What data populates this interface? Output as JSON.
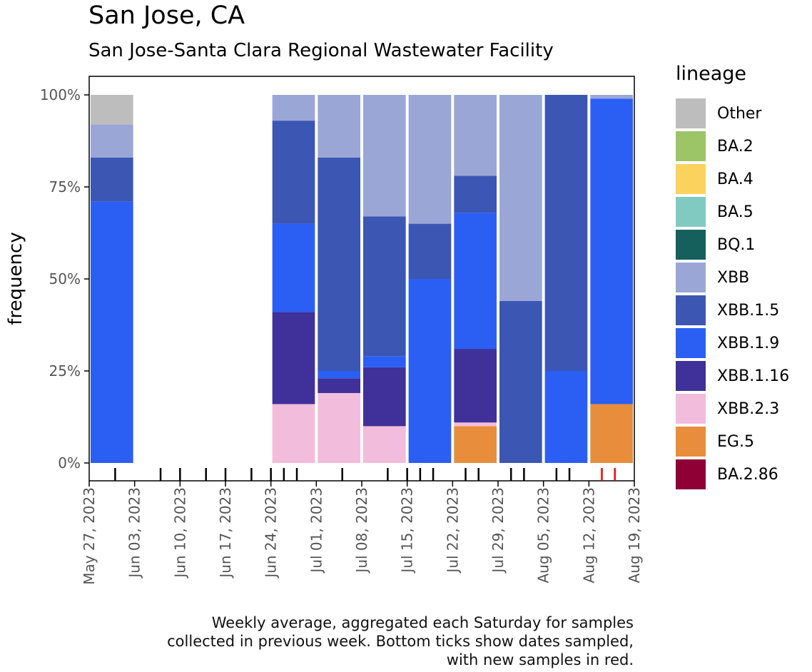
{
  "title": "San Jose, CA",
  "subtitle": "San Jose-Santa Clara Regional Wastewater Facility",
  "caption": [
    "Weekly average, aggregated each Saturday for samples",
    "collected in previous week. Bottom ticks show dates sampled,",
    "with new samples in red."
  ],
  "legend_title": "lineage",
  "lineages": [
    {
      "name": "Other",
      "color": "#bdbdbd"
    },
    {
      "name": "BA.2",
      "color": "#9cc567"
    },
    {
      "name": "BA.4",
      "color": "#fcd25f"
    },
    {
      "name": "BA.5",
      "color": "#80cac1"
    },
    {
      "name": "BQ.1",
      "color": "#155f5c"
    },
    {
      "name": "XBB",
      "color": "#9aa7d6"
    },
    {
      "name": "XBB.1.5",
      "color": "#3c56b4"
    },
    {
      "name": "XBB.1.9",
      "color": "#2b5ff4"
    },
    {
      "name": "XBB.1.16",
      "color": "#40309a"
    },
    {
      "name": "XBB.2.3",
      "color": "#f2bcdc"
    },
    {
      "name": "EG.5",
      "color": "#e88d3b"
    },
    {
      "name": "BA.2.86",
      "color": "#8f0035"
    }
  ],
  "chart_data": {
    "type": "bar",
    "stacked": true,
    "title": "San Jose, CA",
    "subtitle": "San Jose-Santa Clara Regional Wastewater Facility",
    "ylabel": "frequency",
    "xlabel": "",
    "ylim": [
      0,
      100
    ],
    "yticks": [
      0,
      25,
      50,
      75,
      100
    ],
    "ytick_labels": [
      "0%",
      "25%",
      "50%",
      "75%",
      "100%"
    ],
    "xlim_days": [
      0,
      84
    ],
    "xtick_days": [
      0,
      7,
      14,
      21,
      28,
      35,
      42,
      49,
      56,
      63,
      70,
      77,
      84
    ],
    "xtick_labels": [
      "May 27, 2023",
      "Jun 03, 2023",
      "Jun 10, 2023",
      "Jun 17, 2023",
      "Jun 24, 2023",
      "Jul 01, 2023",
      "Jul 08, 2023",
      "Jul 15, 2023",
      "Jul 22, 2023",
      "Jul 29, 2023",
      "Aug 05, 2023",
      "Aug 12, 2023",
      "Aug 19, 2023"
    ],
    "series_order": [
      "EG.5",
      "XBB.2.3",
      "XBB.1.16",
      "XBB.1.9",
      "XBB.1.5",
      "XBB",
      "Other"
    ],
    "bars": [
      {
        "week_ending": "Jun 03, 2023",
        "start_day": 0,
        "end_day": 7,
        "values": {
          "XBB.1.9": 71,
          "XBB.1.5": 12,
          "XBB": 9,
          "Other": 8
        }
      },
      {
        "week_ending": "Jul 01, 2023",
        "start_day": 28,
        "end_day": 35,
        "values": {
          "XBB.2.3": 16,
          "XBB.1.16": 25,
          "XBB.1.9": 24,
          "XBB.1.5": 28,
          "XBB": 7
        }
      },
      {
        "week_ending": "Jul 08, 2023",
        "start_day": 35,
        "end_day": 42,
        "values": {
          "XBB.2.3": 19,
          "XBB.1.16": 4,
          "XBB.1.9": 2,
          "XBB.1.5": 58,
          "XBB": 17
        }
      },
      {
        "week_ending": "Jul 15, 2023",
        "start_day": 42,
        "end_day": 49,
        "values": {
          "XBB.2.3": 10,
          "XBB.1.16": 16,
          "XBB.1.9": 3,
          "XBB.1.5": 38,
          "XBB": 33
        }
      },
      {
        "week_ending": "Jul 22, 2023",
        "start_day": 49,
        "end_day": 56,
        "values": {
          "XBB.1.9": 50,
          "XBB.1.5": 15,
          "XBB": 35
        }
      },
      {
        "week_ending": "Jul 29, 2023",
        "start_day": 56,
        "end_day": 63,
        "values": {
          "EG.5": 10,
          "XBB.2.3": 1,
          "XBB.1.16": 20,
          "XBB.1.9": 37,
          "XBB.1.5": 10,
          "XBB": 22
        }
      },
      {
        "week_ending": "Aug 05, 2023",
        "start_day": 63,
        "end_day": 70,
        "values": {
          "XBB.1.5": 44,
          "XBB": 56
        }
      },
      {
        "week_ending": "Aug 12, 2023",
        "start_day": 70,
        "end_day": 77,
        "values": {
          "XBB.1.9": 25,
          "XBB.1.5": 75
        }
      },
      {
        "week_ending": "Aug 19, 2023",
        "start_day": 77,
        "end_day": 84,
        "values": {
          "EG.5": 16,
          "XBB.1.9": 83,
          "XBB": 1
        }
      }
    ],
    "sample_dates_days": [
      4,
      11,
      14,
      18,
      21,
      25,
      28,
      30,
      32,
      39,
      46,
      49,
      51,
      53,
      58,
      60,
      65,
      67,
      72,
      74
    ],
    "new_sample_dates_days": [
      79,
      81
    ],
    "sample_tick_color": "#000000",
    "new_sample_tick_color": "#ff0000"
  }
}
